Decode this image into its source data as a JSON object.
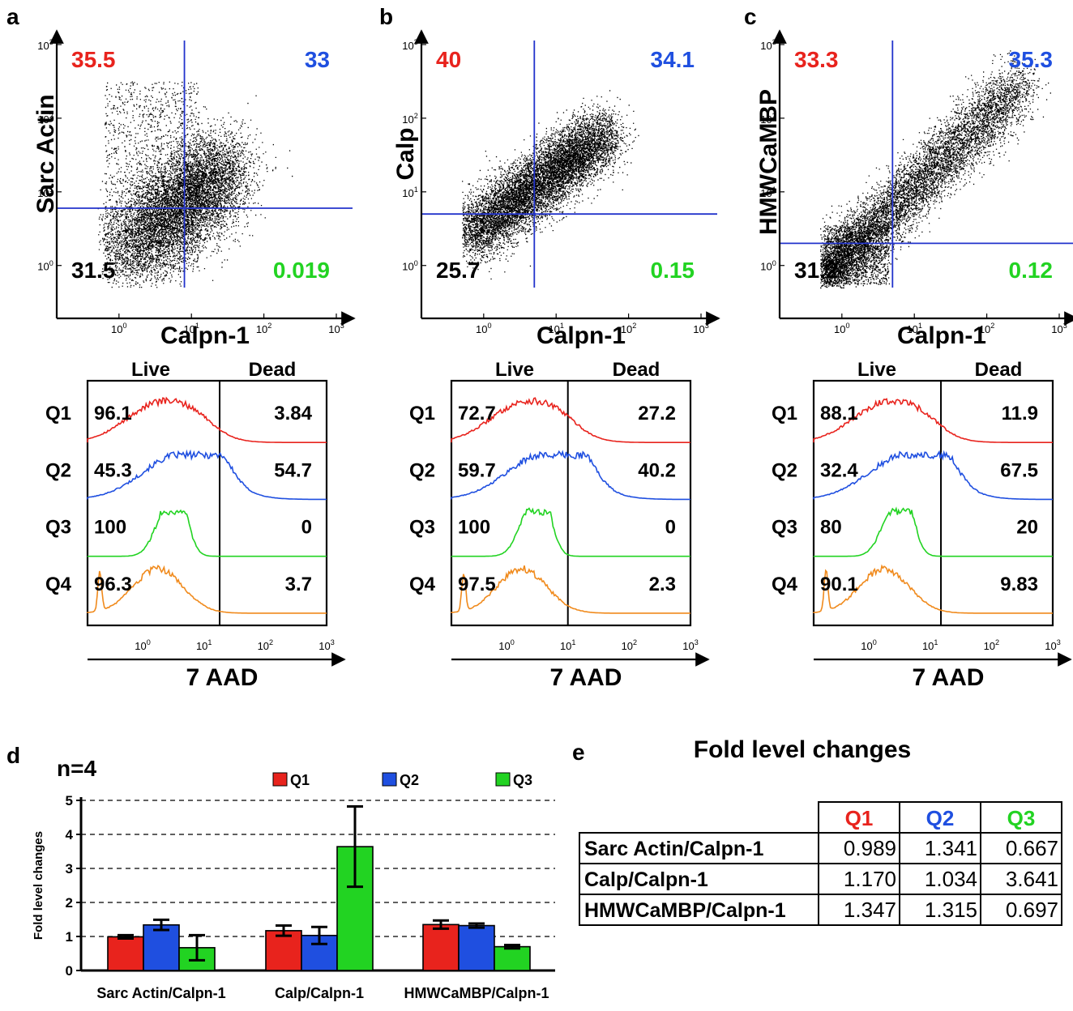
{
  "colors": {
    "red": "#e8231d",
    "blue": "#1f4fe0",
    "green": "#22d322",
    "orange": "#f08a1c",
    "black": "#000000",
    "axis_blue": "#2233cc"
  },
  "panels_top": [
    {
      "letter": "a",
      "ylabel": "Sarc Actin",
      "xlabel": "Calpn-1",
      "q_ul": "35.5",
      "q_ur": "33",
      "q_ll": "31.5",
      "q_lr": "0.019",
      "gate_x": 8,
      "gate_y": 6,
      "cloud": "tight",
      "seed": 11
    },
    {
      "letter": "b",
      "ylabel": "Calp",
      "xlabel": "Calpn-1",
      "q_ul": "40",
      "q_ur": "34.1",
      "q_ll": "25.7",
      "q_lr": "0.15",
      "gate_x": 5,
      "gate_y": 5,
      "cloud": "mid",
      "seed": 23
    },
    {
      "letter": "c",
      "ylabel": "HMWCaMBP",
      "xlabel": "Calpn-1",
      "q_ul": "33.3",
      "q_ur": "35.3",
      "q_ll": "31.2",
      "q_lr": "0.12",
      "gate_x": 5,
      "gate_y": 2,
      "cloud": "long",
      "seed": 37
    }
  ],
  "log_ticks": [
    {
      "base": "10",
      "exp": "0"
    },
    {
      "base": "10",
      "exp": "1"
    },
    {
      "base": "10",
      "exp": "2"
    },
    {
      "base": "10",
      "exp": "3"
    }
  ],
  "hist_panels": [
    {
      "live_label": "Live",
      "dead_label": "Dead",
      "xlabel": "7 AAD",
      "gate_x": 18,
      "rows": [
        {
          "q": "Q1",
          "live": "96.1",
          "dead": "3.84"
        },
        {
          "q": "Q2",
          "live": "45.3",
          "dead": "54.7"
        },
        {
          "q": "Q3",
          "live": "100",
          "dead": "0"
        },
        {
          "q": "Q4",
          "live": "96.3",
          "dead": "3.7"
        }
      ]
    },
    {
      "live_label": "Live",
      "dead_label": "Dead",
      "xlabel": "7 AAD",
      "gate_x": 10,
      "rows": [
        {
          "q": "Q1",
          "live": "72.7",
          "dead": "27.2"
        },
        {
          "q": "Q2",
          "live": "59.7",
          "dead": "40.2"
        },
        {
          "q": "Q3",
          "live": "100",
          "dead": "0"
        },
        {
          "q": "Q4",
          "live": "97.5",
          "dead": "2.3"
        }
      ]
    },
    {
      "live_label": "Live",
      "dead_label": "Dead",
      "xlabel": "7 AAD",
      "gate_x": 15,
      "rows": [
        {
          "q": "Q1",
          "live": "88.1",
          "dead": "11.9"
        },
        {
          "q": "Q2",
          "live": "32.4",
          "dead": "67.5"
        },
        {
          "q": "Q3",
          "live": "80",
          "dead": "20"
        },
        {
          "q": "Q4",
          "live": "90.1",
          "dead": "9.83"
        }
      ]
    }
  ],
  "chart_data": {
    "type": "bar",
    "panel_letter": "d",
    "annotation": "n=4",
    "ylabel": "Fold level changes",
    "ylim": [
      0,
      5
    ],
    "yticks": [
      "0",
      "1",
      "2",
      "3",
      "4",
      "5"
    ],
    "grid": "dashed horizontal",
    "legend_position": "top",
    "categories": [
      "Sarc Actin/Calpn-1",
      "Calp/Calpn-1",
      "HMWCaMBP/Calpn-1"
    ],
    "series": [
      {
        "name": "Q1",
        "values": [
          0.99,
          1.17,
          1.35
        ],
        "errors": [
          0.05,
          0.15,
          0.12
        ]
      },
      {
        "name": "Q2",
        "values": [
          1.34,
          1.03,
          1.32
        ],
        "errors": [
          0.15,
          0.25,
          0.06
        ]
      },
      {
        "name": "Q3",
        "values": [
          0.67,
          3.64,
          0.7
        ],
        "errors": [
          0.37,
          1.18,
          0.05
        ]
      }
    ]
  },
  "table_panel": {
    "letter": "e",
    "title": "Fold level changes",
    "headers": [
      "Q1",
      "Q2",
      "Q3"
    ],
    "rows": [
      {
        "label": "Sarc Actin/Calpn-1",
        "values": [
          "0.989",
          "1.341",
          "0.667"
        ]
      },
      {
        "label": "Calp/Calpn-1",
        "values": [
          "1.170",
          "1.034",
          "3.641"
        ]
      },
      {
        "label": "HMWCaMBP/Calpn-1",
        "values": [
          "1.347",
          "1.315",
          "0.697"
        ]
      }
    ]
  }
}
